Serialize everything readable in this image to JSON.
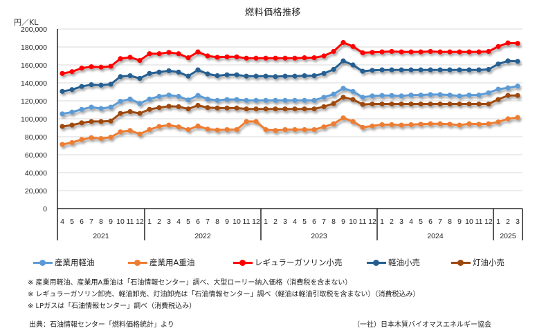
{
  "chart_data": {
    "type": "line",
    "title": "燃料価格推移",
    "ylabel": "円／KL",
    "xlabel": "",
    "ylim": [
      0,
      200000
    ],
    "yticks": [
      0,
      20000,
      40000,
      60000,
      80000,
      100000,
      120000,
      140000,
      160000,
      180000,
      200000
    ],
    "ytick_labels": [
      "0",
      "20,000",
      "40,000",
      "60,000",
      "80,000",
      "100,000",
      "120,000",
      "140,000",
      "160,000",
      "180,000",
      "200,000"
    ],
    "grid": true,
    "legend_position": "bottom",
    "x_month_labels": [
      "4",
      "5",
      "6",
      "7",
      "8",
      "9",
      "10",
      "11",
      "12",
      "1",
      "2",
      "3",
      "4",
      "5",
      "6",
      "7",
      "8",
      "9",
      "10",
      "11",
      "12",
      "1",
      "2",
      "3",
      "4",
      "5",
      "6",
      "7",
      "8",
      "9",
      "10",
      "11",
      "12",
      "1",
      "2",
      "3",
      "4",
      "5",
      "6",
      "7",
      "8",
      "9",
      "10",
      "11",
      "12",
      "1",
      "2",
      "3"
    ],
    "x_year_groups": [
      {
        "label": "2021",
        "count": 9
      },
      {
        "label": "2022",
        "count": 12
      },
      {
        "label": "2023",
        "count": 12
      },
      {
        "label": "2024",
        "count": 12
      },
      {
        "label": "2025",
        "count": 3
      }
    ],
    "series": [
      {
        "name": "産業用軽油",
        "color": "#5b9bd5",
        "values": [
          105500,
          107500,
          110500,
          113000,
          111500,
          113000,
          119500,
          122000,
          117000,
          122000,
          125000,
          126500,
          125000,
          121000,
          126000,
          122000,
          120500,
          121500,
          121500,
          120500,
          120500,
          120500,
          120500,
          120500,
          120500,
          120500,
          120500,
          124000,
          127500,
          134000,
          130500,
          124000,
          125500,
          126000,
          126000,
          125500,
          126500,
          126500,
          127000,
          127000,
          126500,
          125500,
          126500,
          126500,
          129000,
          133000,
          134500,
          136500
        ]
      },
      {
        "name": "産業用A重油",
        "color": "#ed7d31",
        "values": [
          71500,
          73500,
          77000,
          79000,
          78000,
          79500,
          85500,
          87000,
          83000,
          88000,
          91500,
          93000,
          91000,
          88000,
          92000,
          88500,
          87500,
          88000,
          88000,
          97000,
          97000,
          88000,
          87000,
          88000,
          88000,
          88000,
          88000,
          91000,
          94500,
          101000,
          97000,
          90500,
          92000,
          93500,
          93500,
          93000,
          93500,
          94000,
          94500,
          94500,
          94000,
          93000,
          94500,
          94000,
          94500,
          96500,
          100000,
          101500
        ]
      },
      {
        "name": "レギュラーガソリン小売",
        "color": "#ff0000",
        "values": [
          150500,
          152500,
          156500,
          158000,
          157500,
          158500,
          167000,
          168500,
          165000,
          172500,
          172500,
          174000,
          172500,
          168000,
          174500,
          170000,
          168500,
          169000,
          169000,
          167500,
          167500,
          167500,
          167500,
          167500,
          167500,
          168000,
          168000,
          170000,
          175000,
          185000,
          180500,
          173500,
          174000,
          174500,
          175000,
          174500,
          174500,
          174500,
          175000,
          174500,
          174500,
          174500,
          174500,
          174500,
          175000,
          180500,
          184500,
          184000
        ]
      },
      {
        "name": "軽油小売",
        "color": "#255e91",
        "values": [
          130500,
          132500,
          136000,
          138000,
          137500,
          138500,
          147000,
          148000,
          145000,
          150500,
          152000,
          153500,
          152000,
          147500,
          154500,
          150000,
          148000,
          149000,
          149000,
          147500,
          147500,
          147500,
          147000,
          147500,
          147500,
          148000,
          148000,
          150500,
          155000,
          164500,
          160000,
          153000,
          154000,
          154500,
          154500,
          154500,
          154500,
          154500,
          154500,
          154500,
          154500,
          154500,
          154500,
          154500,
          155000,
          161000,
          164500,
          164000
        ]
      },
      {
        "name": "灯油小売",
        "color": "#9e480e",
        "values": [
          91500,
          93000,
          95500,
          97000,
          97000,
          97500,
          106000,
          108000,
          106000,
          110500,
          112500,
          114000,
          113500,
          111000,
          115000,
          112500,
          112000,
          112000,
          112000,
          111000,
          111000,
          111000,
          111000,
          111000,
          111000,
          111000,
          111000,
          113500,
          117000,
          124000,
          121500,
          116000,
          116500,
          116500,
          116500,
          116500,
          116500,
          116500,
          116500,
          116500,
          116500,
          116500,
          116500,
          116500,
          116500,
          121500,
          126000,
          126000
        ]
      }
    ]
  },
  "notes": [
    "※ 産業用軽油、産業用A重油は「石油情報センター」調べ、大型ローリー納入価格（消費税を含まない）",
    "※ レギュラーガソリン卸売、軽油卸売、灯油卸売は「石油情報センター」調べ（軽油は軽油引取税を含まない）（消費税込み）",
    "※ LPガスは「石油情報センター」調べ（消費税込み）"
  ],
  "source": "出典：石油情報センター「燃料価格統計」より",
  "organization": "（一社）日本木質バイオマスエネルギー協会"
}
